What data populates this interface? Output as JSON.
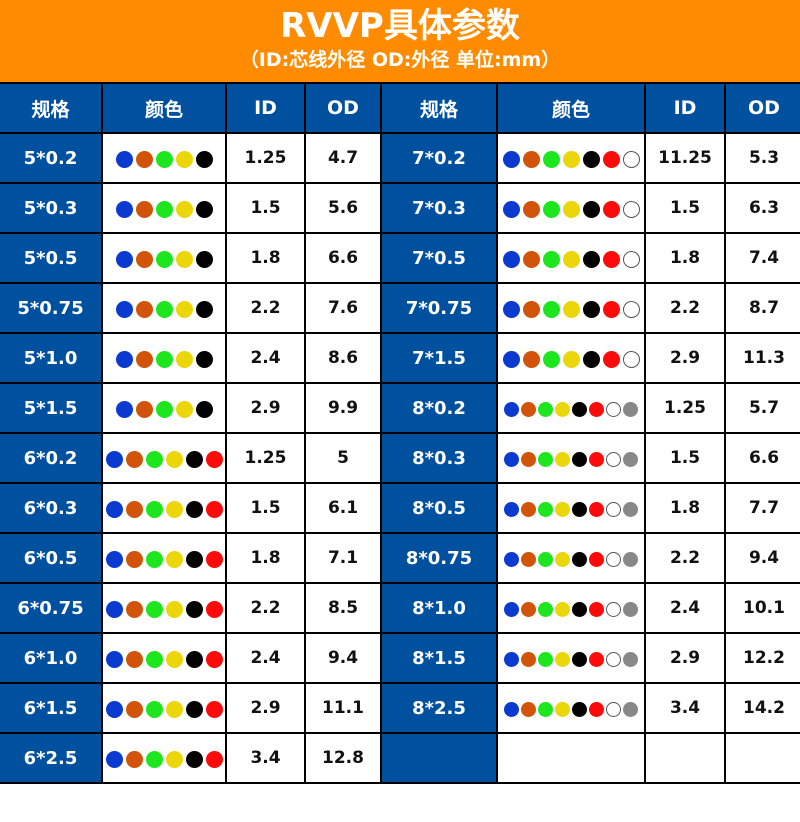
{
  "header": {
    "title": "RVVP具体参数",
    "subtitle": "（ID:芯线外径 OD:外径 单位:mm）"
  },
  "table": {
    "columns": [
      "规格",
      "颜色",
      "ID",
      "OD",
      "规格",
      "颜色",
      "ID",
      "OD"
    ],
    "color_palette": {
      "blue": "#0A3ACF",
      "brown": "#D2530A",
      "green": "#1EE61E",
      "yellow": "#EBD60A",
      "black": "#000000",
      "red": "#FF0A0A",
      "white": "#FFFFFF",
      "gray": "#888888"
    },
    "left_rows": [
      {
        "spec": "5*0.2",
        "colors": [
          "blue",
          "brown",
          "green",
          "yellow",
          "black"
        ],
        "id": "1.25",
        "od": "4.7"
      },
      {
        "spec": "5*0.3",
        "colors": [
          "blue",
          "brown",
          "green",
          "yellow",
          "black"
        ],
        "id": "1.5",
        "od": "5.6"
      },
      {
        "spec": "5*0.5",
        "colors": [
          "blue",
          "brown",
          "green",
          "yellow",
          "black"
        ],
        "id": "1.8",
        "od": "6.6"
      },
      {
        "spec": "5*0.75",
        "colors": [
          "blue",
          "brown",
          "green",
          "yellow",
          "black"
        ],
        "id": "2.2",
        "od": "7.6"
      },
      {
        "spec": "5*1.0",
        "colors": [
          "blue",
          "brown",
          "green",
          "yellow",
          "black"
        ],
        "id": "2.4",
        "od": "8.6"
      },
      {
        "spec": "5*1.5",
        "colors": [
          "blue",
          "brown",
          "green",
          "yellow",
          "black"
        ],
        "id": "2.9",
        "od": "9.9"
      },
      {
        "spec": "6*0.2",
        "colors": [
          "blue",
          "brown",
          "green",
          "yellow",
          "black",
          "red"
        ],
        "id": "1.25",
        "od": "5"
      },
      {
        "spec": "6*0.3",
        "colors": [
          "blue",
          "brown",
          "green",
          "yellow",
          "black",
          "red"
        ],
        "id": "1.5",
        "od": "6.1"
      },
      {
        "spec": "6*0.5",
        "colors": [
          "blue",
          "brown",
          "green",
          "yellow",
          "black",
          "red"
        ],
        "id": "1.8",
        "od": "7.1"
      },
      {
        "spec": "6*0.75",
        "colors": [
          "blue",
          "brown",
          "green",
          "yellow",
          "black",
          "red"
        ],
        "id": "2.2",
        "od": "8.5"
      },
      {
        "spec": "6*1.0",
        "colors": [
          "blue",
          "brown",
          "green",
          "yellow",
          "black",
          "red"
        ],
        "id": "2.4",
        "od": "9.4"
      },
      {
        "spec": "6*1.5",
        "colors": [
          "blue",
          "brown",
          "green",
          "yellow",
          "black",
          "red"
        ],
        "id": "2.9",
        "od": "11.1"
      },
      {
        "spec": "6*2.5",
        "colors": [
          "blue",
          "brown",
          "green",
          "yellow",
          "black",
          "red"
        ],
        "id": "3.4",
        "od": "12.8"
      }
    ],
    "right_rows": [
      {
        "spec": "7*0.2",
        "colors": [
          "blue",
          "brown",
          "green",
          "yellow",
          "black",
          "red",
          "white"
        ],
        "id": "11.25",
        "od": "5.3"
      },
      {
        "spec": "7*0.3",
        "colors": [
          "blue",
          "brown",
          "green",
          "yellow",
          "black",
          "red",
          "white"
        ],
        "id": "1.5",
        "od": "6.3"
      },
      {
        "spec": "7*0.5",
        "colors": [
          "blue",
          "brown",
          "green",
          "yellow",
          "black",
          "red",
          "white"
        ],
        "id": "1.8",
        "od": "7.4"
      },
      {
        "spec": "7*0.75",
        "colors": [
          "blue",
          "brown",
          "green",
          "yellow",
          "black",
          "red",
          "white"
        ],
        "id": "2.2",
        "od": "8.7"
      },
      {
        "spec": "7*1.5",
        "colors": [
          "blue",
          "brown",
          "green",
          "yellow",
          "black",
          "red",
          "white"
        ],
        "id": "2.9",
        "od": "11.3"
      },
      {
        "spec": "8*0.2",
        "colors": [
          "blue",
          "brown",
          "green",
          "yellow",
          "black",
          "red",
          "white",
          "gray"
        ],
        "id": "1.25",
        "od": "5.7"
      },
      {
        "spec": "8*0.3",
        "colors": [
          "blue",
          "brown",
          "green",
          "yellow",
          "black",
          "red",
          "white",
          "gray"
        ],
        "id": "1.5",
        "od": "6.6"
      },
      {
        "spec": "8*0.5",
        "colors": [
          "blue",
          "brown",
          "green",
          "yellow",
          "black",
          "red",
          "white",
          "gray"
        ],
        "id": "1.8",
        "od": "7.7"
      },
      {
        "spec": "8*0.75",
        "colors": [
          "blue",
          "brown",
          "green",
          "yellow",
          "black",
          "red",
          "white",
          "gray"
        ],
        "id": "2.2",
        "od": "9.4"
      },
      {
        "spec": "8*1.0",
        "colors": [
          "blue",
          "brown",
          "green",
          "yellow",
          "black",
          "red",
          "white",
          "gray"
        ],
        "id": "2.4",
        "od": "10.1"
      },
      {
        "spec": "8*1.5",
        "colors": [
          "blue",
          "brown",
          "green",
          "yellow",
          "black",
          "red",
          "white",
          "gray"
        ],
        "id": "2.9",
        "od": "12.2"
      },
      {
        "spec": "8*2.5",
        "colors": [
          "blue",
          "brown",
          "green",
          "yellow",
          "black",
          "red",
          "white",
          "gray"
        ],
        "id": "3.4",
        "od": "14.2"
      },
      {
        "spec": "",
        "colors": [],
        "id": "",
        "od": ""
      }
    ]
  }
}
